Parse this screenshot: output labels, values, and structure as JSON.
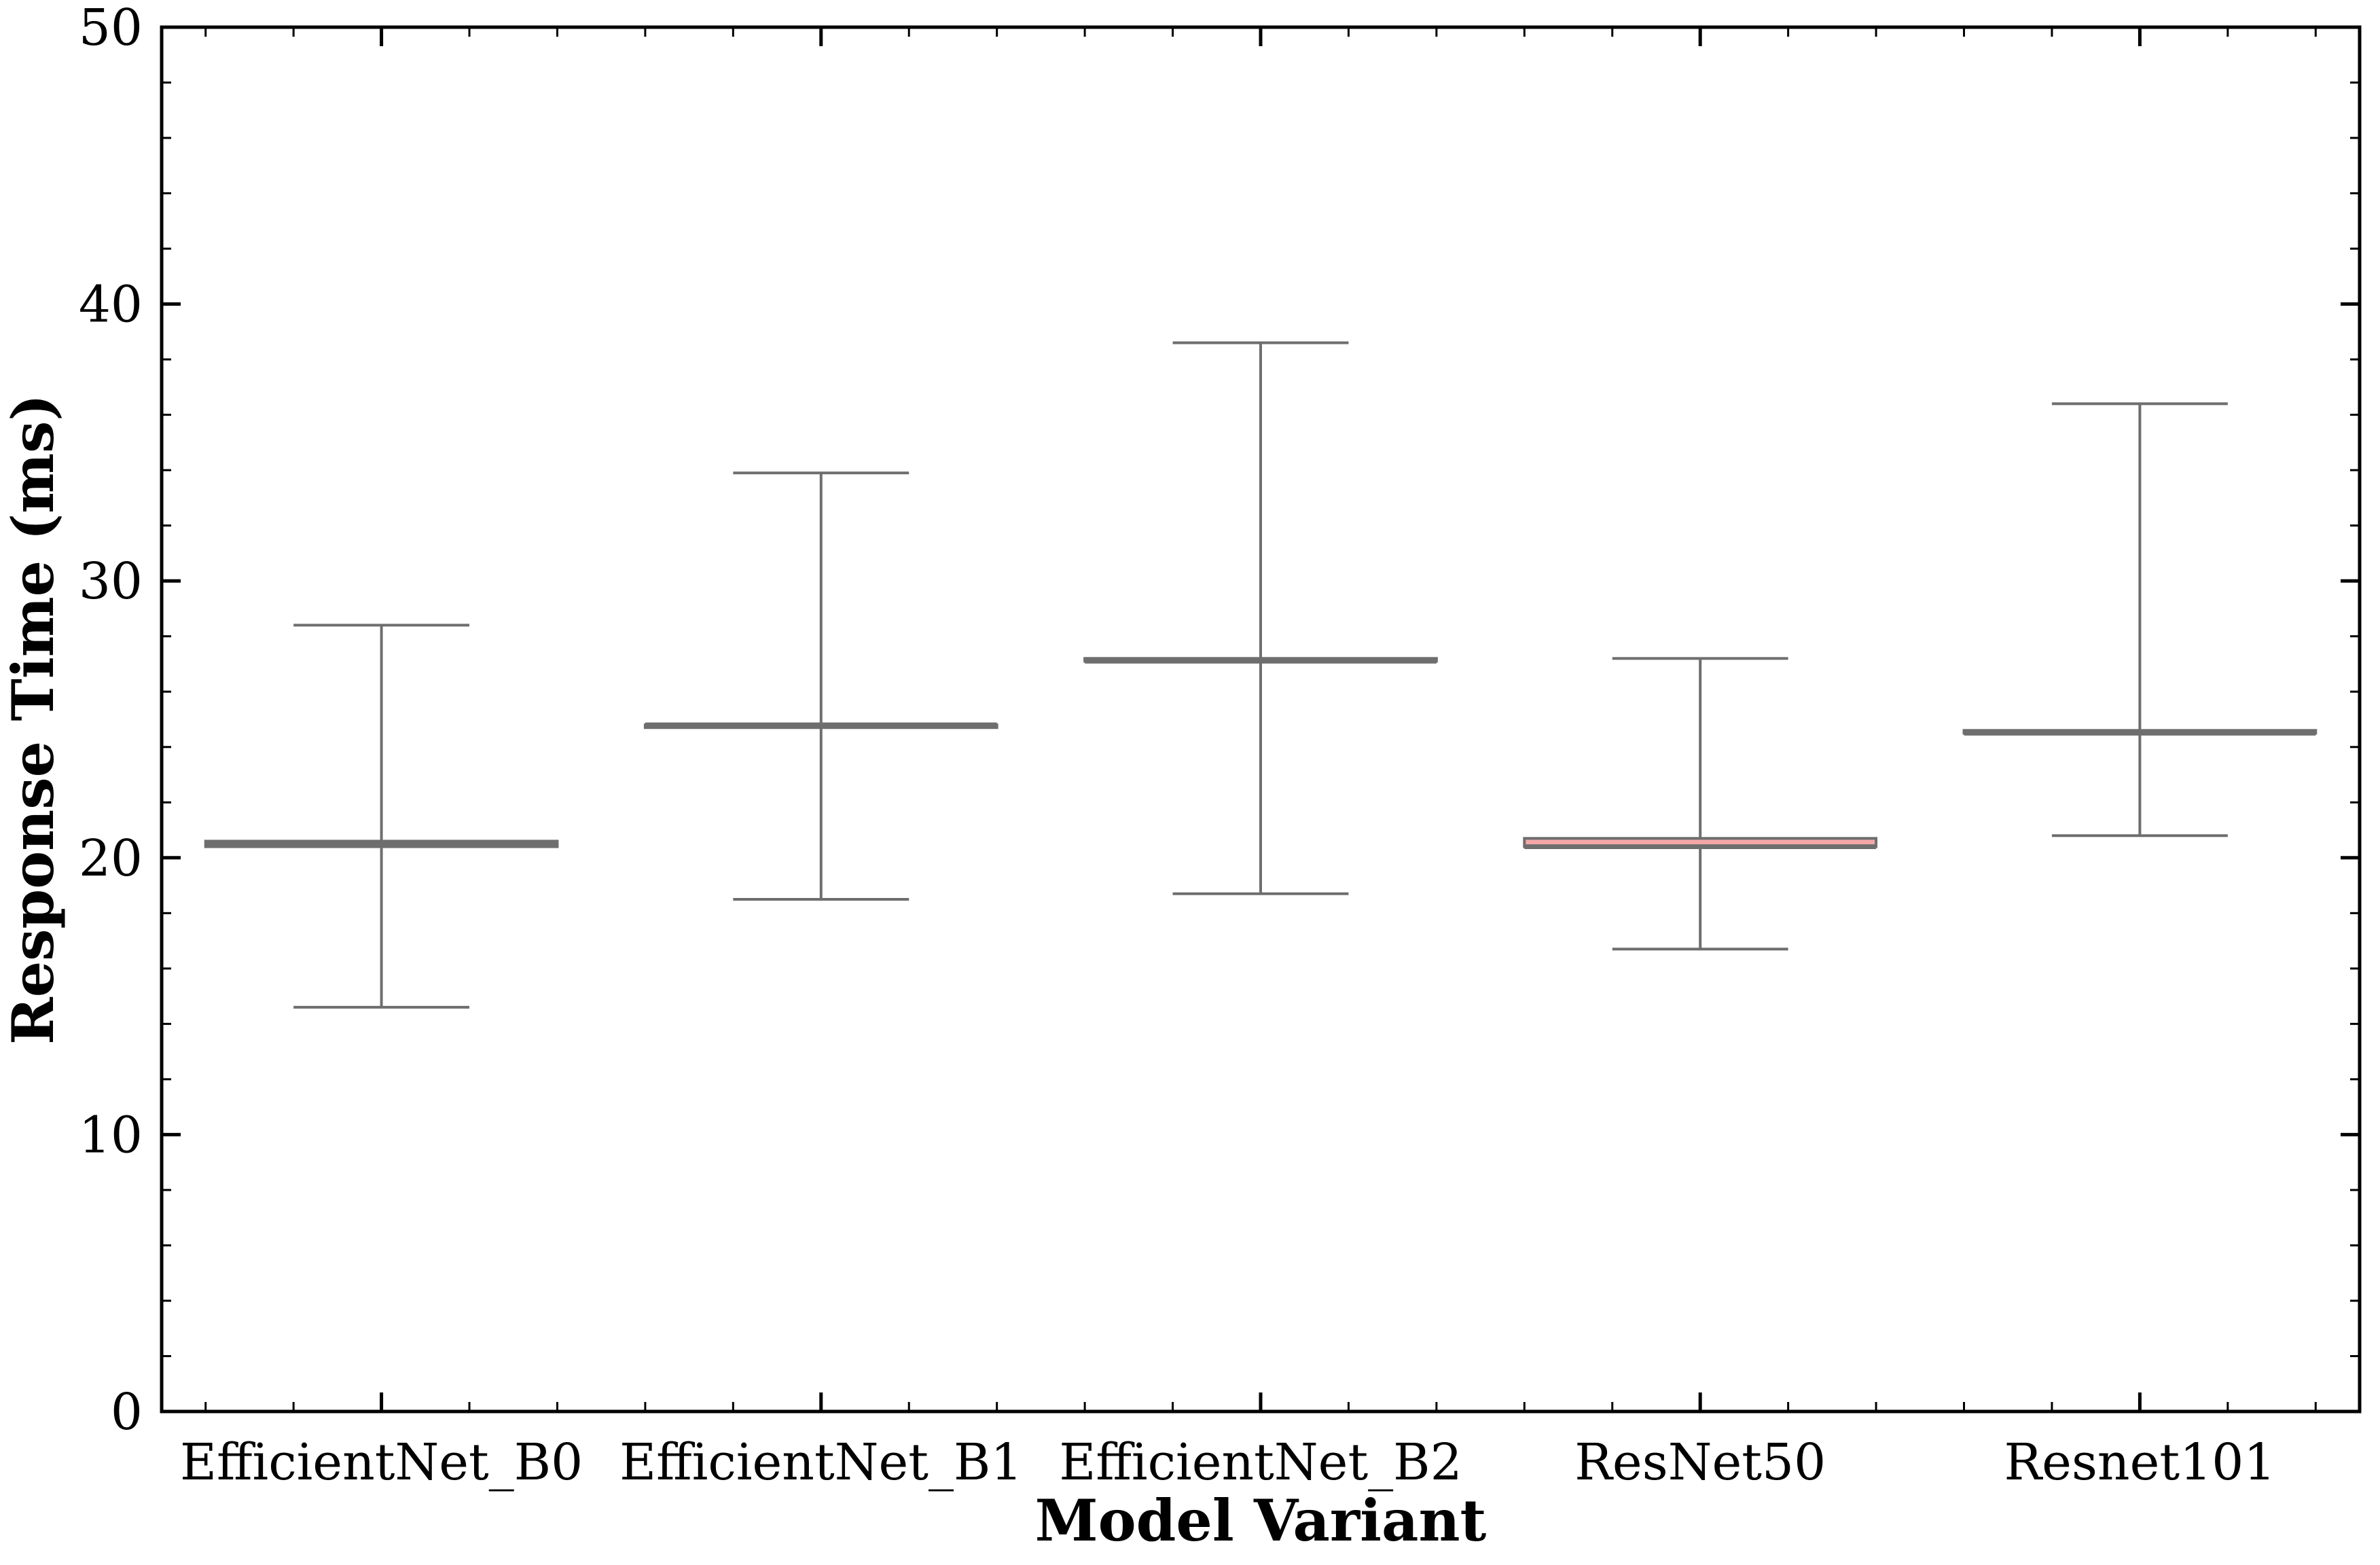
{
  "chart_data": {
    "type": "box",
    "title": "",
    "xlabel": "Model Variant",
    "ylabel": "Response Time (ms)",
    "ylim": [
      0,
      50
    ],
    "yticks": [
      "0",
      "10",
      "20",
      "30",
      "40",
      "50"
    ],
    "ytick_values": [
      0,
      10,
      20,
      30,
      40,
      50
    ],
    "grid": false,
    "categories": [
      "EfficientNet_B0",
      "EfficientNet_B1",
      "EfficientNet_B2",
      "ResNet50",
      "Resnet101"
    ],
    "boxes": [
      {
        "category": "EfficientNet_B0",
        "whisker_low": 14.6,
        "q1": 20.4,
        "median": 20.5,
        "q3": 20.6,
        "whisker_high": 28.4,
        "color": "#a9a9a9"
      },
      {
        "category": "EfficientNet_B1",
        "whisker_low": 18.5,
        "q1": 24.7,
        "median": 24.8,
        "q3": 24.8,
        "whisker_high": 33.9,
        "color": "#a9a9a9"
      },
      {
        "category": "EfficientNet_B2",
        "whisker_low": 18.7,
        "q1": 27.1,
        "median": 27.1,
        "q3": 27.2,
        "whisker_high": 38.6,
        "color": "#a9a9a9"
      },
      {
        "category": "ResNet50",
        "whisker_low": 16.7,
        "q1": 20.4,
        "median": 20.4,
        "q3": 20.7,
        "whisker_high": 27.2,
        "color": "#f4a7a7"
      },
      {
        "category": "Resnet101",
        "whisker_low": 20.8,
        "q1": 24.5,
        "median": 24.5,
        "q3": 24.6,
        "whisker_high": 36.4,
        "color": "#a9a9a9"
      }
    ]
  }
}
